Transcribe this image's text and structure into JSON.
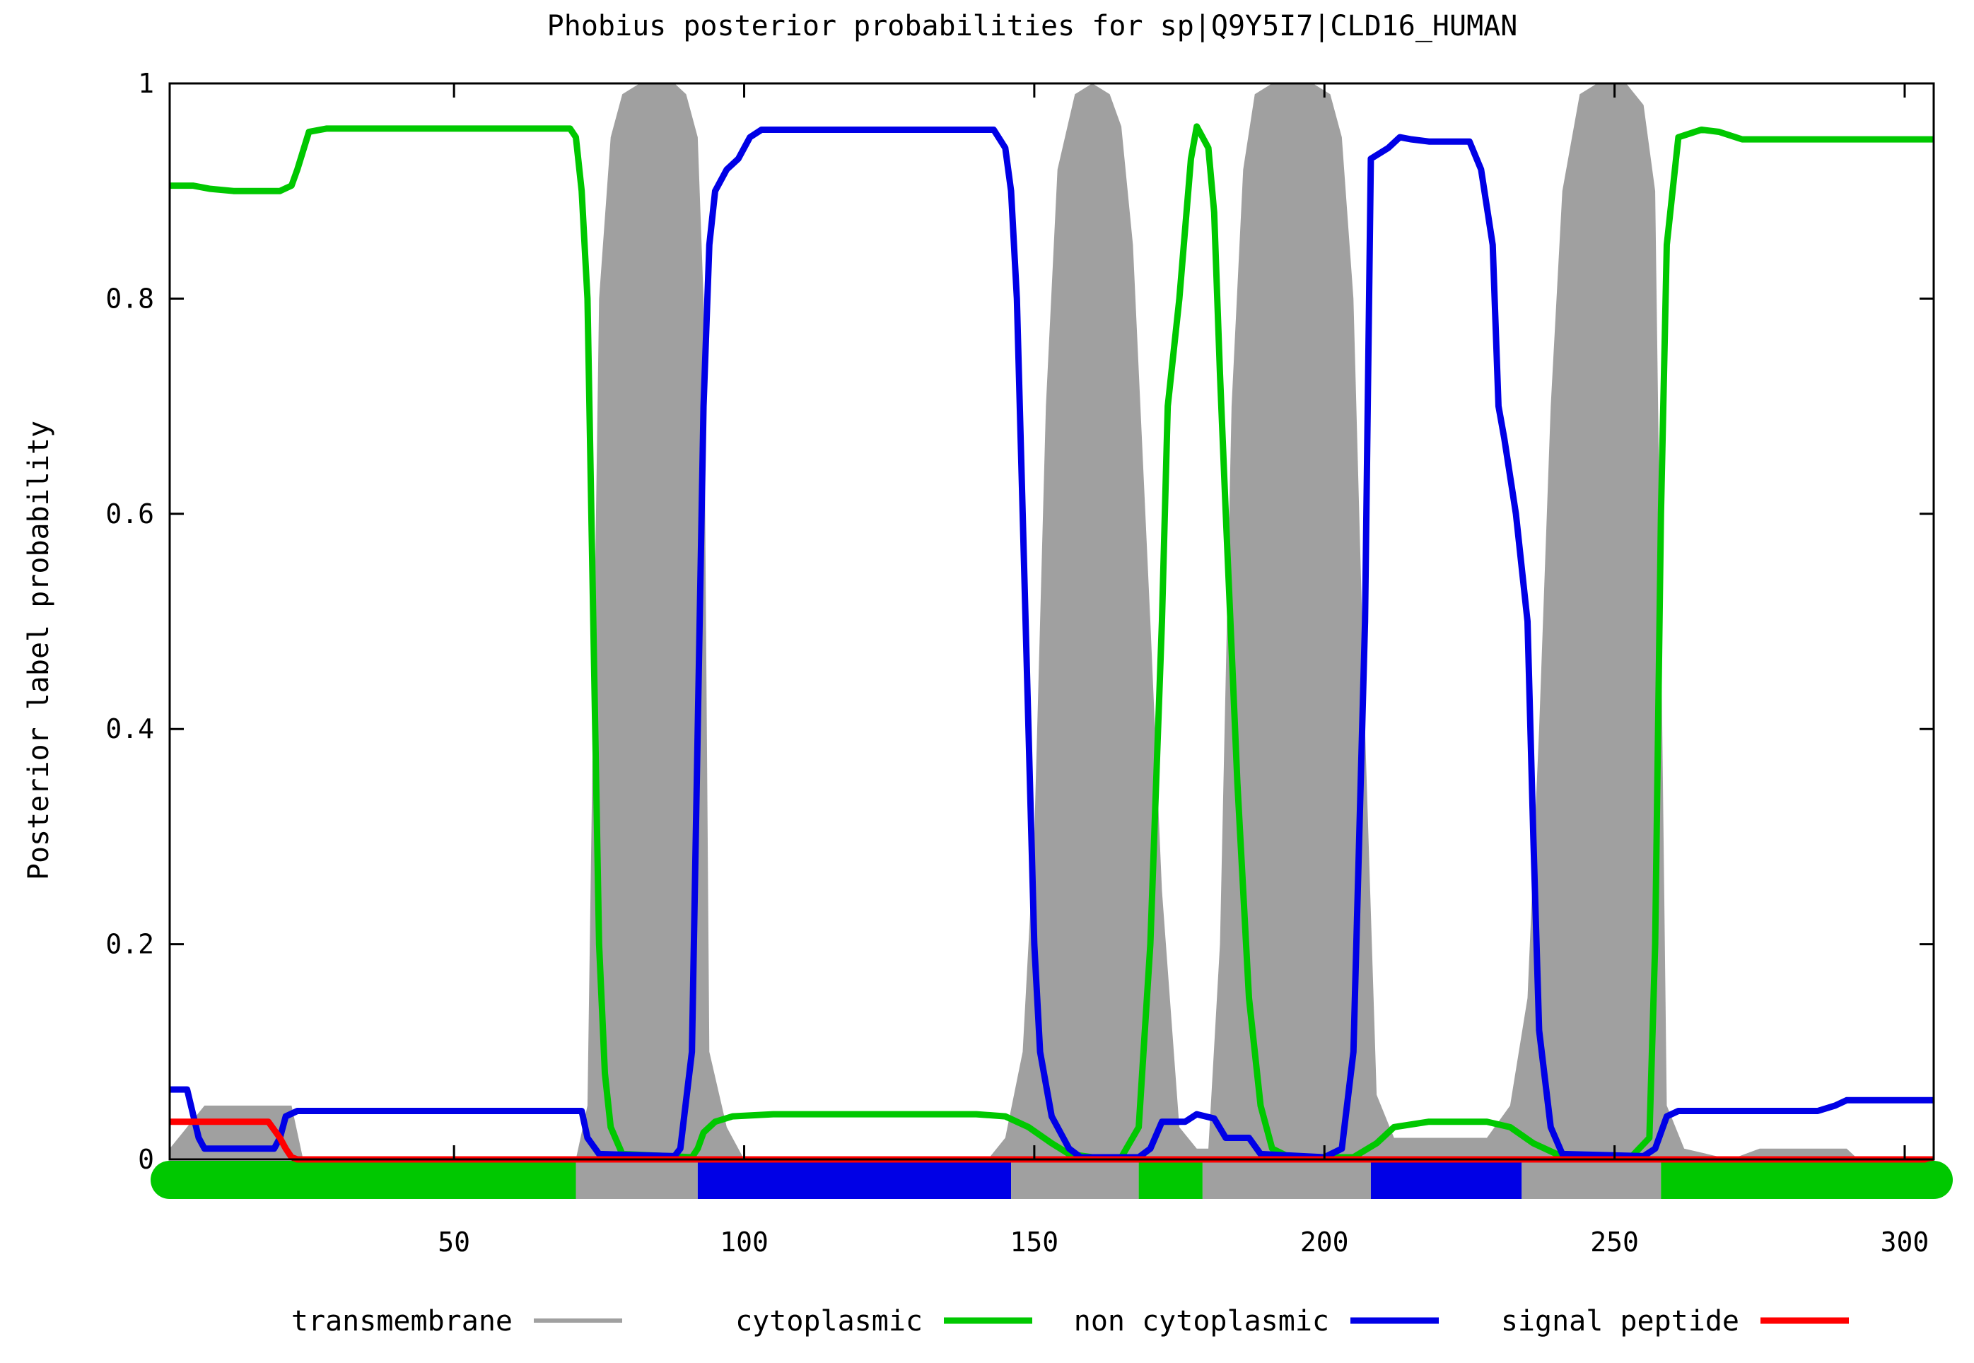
{
  "chart_data": {
    "type": "line",
    "title": "Phobius posterior probabilities for sp|Q9Y5I7|CLD16_HUMAN",
    "xlabel": "",
    "ylabel": "Posterior label probability",
    "xlim": [
      1,
      305
    ],
    "ylim": [
      0,
      1
    ],
    "x_ticks": [
      50,
      100,
      150,
      200,
      250,
      300
    ],
    "y_ticks": [
      0,
      0.2,
      0.4,
      0.6,
      0.8,
      1
    ],
    "y_tick_labels": [
      "0",
      "0.2",
      "0.4",
      "0.6",
      "0.8",
      "1"
    ],
    "legend_position": "bottom",
    "series": [
      {
        "name": "transmembrane",
        "style": "filled-area",
        "color": "#a0a0a0",
        "points": [
          [
            1,
            0.01
          ],
          [
            7,
            0.05
          ],
          [
            22,
            0.05
          ],
          [
            24,
            0
          ],
          [
            71,
            0
          ],
          [
            73,
            0.05
          ],
          [
            75,
            0.8
          ],
          [
            77,
            0.95
          ],
          [
            79,
            0.99
          ],
          [
            82,
            1
          ],
          [
            88,
            1
          ],
          [
            90,
            0.99
          ],
          [
            92,
            0.95
          ],
          [
            93,
            0.8
          ],
          [
            94,
            0.1
          ],
          [
            97,
            0.03
          ],
          [
            100,
            0
          ],
          [
            142,
            0
          ],
          [
            145,
            0.02
          ],
          [
            148,
            0.1
          ],
          [
            150,
            0.3
          ],
          [
            152,
            0.7
          ],
          [
            154,
            0.92
          ],
          [
            157,
            0.99
          ],
          [
            160,
            1
          ],
          [
            163,
            0.99
          ],
          [
            165,
            0.96
          ],
          [
            167,
            0.85
          ],
          [
            170,
            0.5
          ],
          [
            172,
            0.25
          ],
          [
            175,
            0.03
          ],
          [
            178,
            0.01
          ],
          [
            180,
            0.01
          ],
          [
            182,
            0.2
          ],
          [
            184,
            0.7
          ],
          [
            186,
            0.92
          ],
          [
            188,
            0.99
          ],
          [
            191,
            1
          ],
          [
            198,
            1
          ],
          [
            201,
            0.99
          ],
          [
            203,
            0.95
          ],
          [
            205,
            0.8
          ],
          [
            207,
            0.4
          ],
          [
            209,
            0.06
          ],
          [
            212,
            0.02
          ],
          [
            220,
            0.02
          ],
          [
            228,
            0.02
          ],
          [
            232,
            0.05
          ],
          [
            235,
            0.15
          ],
          [
            237,
            0.4
          ],
          [
            239,
            0.7
          ],
          [
            241,
            0.9
          ],
          [
            244,
            0.99
          ],
          [
            247,
            1
          ],
          [
            252,
            1
          ],
          [
            255,
            0.98
          ],
          [
            257,
            0.9
          ],
          [
            258,
            0.5
          ],
          [
            259,
            0.05
          ],
          [
            262,
            0.01
          ],
          [
            270,
            0
          ],
          [
            275,
            0.01
          ],
          [
            283,
            0.01
          ],
          [
            290,
            0.01
          ],
          [
            292,
            0
          ],
          [
            305,
            0
          ]
        ]
      },
      {
        "name": "cytoplasmic",
        "style": "line",
        "color": "#00c800",
        "points": [
          [
            1,
            0.905
          ],
          [
            5,
            0.905
          ],
          [
            8,
            0.902
          ],
          [
            12,
            0.9
          ],
          [
            20,
            0.9
          ],
          [
            22,
            0.905
          ],
          [
            23,
            0.92
          ],
          [
            25,
            0.955
          ],
          [
            28,
            0.958
          ],
          [
            70,
            0.958
          ],
          [
            71,
            0.95
          ],
          [
            72,
            0.9
          ],
          [
            73,
            0.8
          ],
          [
            74,
            0.5
          ],
          [
            75,
            0.2
          ],
          [
            76,
            0.08
          ],
          [
            77,
            0.03
          ],
          [
            79,
            0.005
          ],
          [
            91,
            0.002
          ],
          [
            92,
            0.01
          ],
          [
            93,
            0.025
          ],
          [
            95,
            0.035
          ],
          [
            98,
            0.04
          ],
          [
            105,
            0.042
          ],
          [
            140,
            0.042
          ],
          [
            145,
            0.04
          ],
          [
            149,
            0.03
          ],
          [
            153,
            0.015
          ],
          [
            156,
            0.005
          ],
          [
            160,
            0.002
          ],
          [
            165,
            0.002
          ],
          [
            168,
            0.03
          ],
          [
            170,
            0.2
          ],
          [
            172,
            0.5
          ],
          [
            173,
            0.7
          ],
          [
            175,
            0.8
          ],
          [
            177,
            0.93
          ],
          [
            178,
            0.96
          ],
          [
            180,
            0.94
          ],
          [
            181,
            0.88
          ],
          [
            182,
            0.73
          ],
          [
            183,
            0.6
          ],
          [
            185,
            0.35
          ],
          [
            187,
            0.15
          ],
          [
            189,
            0.05
          ],
          [
            191,
            0.01
          ],
          [
            194,
            0.002
          ],
          [
            205,
            0.002
          ],
          [
            209,
            0.015
          ],
          [
            212,
            0.03
          ],
          [
            218,
            0.035
          ],
          [
            228,
            0.035
          ],
          [
            232,
            0.03
          ],
          [
            236,
            0.015
          ],
          [
            240,
            0.005
          ],
          [
            253,
            0.003
          ],
          [
            256,
            0.02
          ],
          [
            257,
            0.2
          ],
          [
            258,
            0.6
          ],
          [
            259,
            0.85
          ],
          [
            261,
            0.95
          ],
          [
            265,
            0.957
          ],
          [
            268,
            0.955
          ],
          [
            272,
            0.948
          ],
          [
            305,
            0.948
          ]
        ]
      },
      {
        "name": "non cytoplasmic",
        "style": "line",
        "color": "#0000e6",
        "points": [
          [
            1,
            0.065
          ],
          [
            4,
            0.065
          ],
          [
            6,
            0.02
          ],
          [
            7,
            0.01
          ],
          [
            19,
            0.01
          ],
          [
            20,
            0.02
          ],
          [
            21,
            0.04
          ],
          [
            23,
            0.045
          ],
          [
            72,
            0.045
          ],
          [
            73,
            0.02
          ],
          [
            75,
            0.005
          ],
          [
            88,
            0.003
          ],
          [
            89,
            0.01
          ],
          [
            91,
            0.1
          ],
          [
            92,
            0.4
          ],
          [
            93,
            0.7
          ],
          [
            94,
            0.85
          ],
          [
            95,
            0.9
          ],
          [
            97,
            0.92
          ],
          [
            99,
            0.93
          ],
          [
            101,
            0.95
          ],
          [
            103,
            0.957
          ],
          [
            143,
            0.957
          ],
          [
            145,
            0.94
          ],
          [
            146,
            0.9
          ],
          [
            147,
            0.8
          ],
          [
            148,
            0.6
          ],
          [
            149,
            0.4
          ],
          [
            150,
            0.2
          ],
          [
            151,
            0.1
          ],
          [
            153,
            0.04
          ],
          [
            156,
            0.01
          ],
          [
            158,
            0.002
          ],
          [
            168,
            0.002
          ],
          [
            170,
            0.01
          ],
          [
            172,
            0.035
          ],
          [
            176,
            0.035
          ],
          [
            178,
            0.042
          ],
          [
            181,
            0.038
          ],
          [
            183,
            0.02
          ],
          [
            187,
            0.02
          ],
          [
            189,
            0.005
          ],
          [
            200,
            0.002
          ],
          [
            203,
            0.01
          ],
          [
            205,
            0.1
          ],
          [
            207,
            0.5
          ],
          [
            208,
            0.93
          ],
          [
            211,
            0.94
          ],
          [
            213,
            0.95
          ],
          [
            215,
            0.948
          ],
          [
            218,
            0.946
          ],
          [
            225,
            0.946
          ],
          [
            227,
            0.92
          ],
          [
            229,
            0.85
          ],
          [
            230,
            0.7
          ],
          [
            231,
            0.67
          ],
          [
            233,
            0.6
          ],
          [
            235,
            0.5
          ],
          [
            236,
            0.3
          ],
          [
            237,
            0.12
          ],
          [
            239,
            0.03
          ],
          [
            241,
            0.005
          ],
          [
            255,
            0.003
          ],
          [
            257,
            0.01
          ],
          [
            259,
            0.04
          ],
          [
            261,
            0.045
          ],
          [
            285,
            0.045
          ],
          [
            288,
            0.05
          ],
          [
            290,
            0.055
          ],
          [
            305,
            0.055
          ]
        ]
      },
      {
        "name": "signal peptide",
        "style": "line",
        "color": "#ff0000",
        "points": [
          [
            1,
            0.035
          ],
          [
            18,
            0.035
          ],
          [
            20,
            0.02
          ],
          [
            21,
            0.01
          ],
          [
            22,
            0.002
          ],
          [
            23,
            0
          ],
          [
            305,
            0
          ]
        ]
      }
    ],
    "topology_bar": [
      {
        "from": 1,
        "to": 71,
        "label": "cytoplasmic",
        "color": "#00c800"
      },
      {
        "from": 71,
        "to": 92,
        "label": "transmembrane",
        "color": "#a0a0a0"
      },
      {
        "from": 92,
        "to": 146,
        "label": "non cytoplasmic",
        "color": "#0000e6"
      },
      {
        "from": 146,
        "to": 168,
        "label": "transmembrane",
        "color": "#a0a0a0"
      },
      {
        "from": 168,
        "to": 179,
        "label": "cytoplasmic",
        "color": "#00c800"
      },
      {
        "from": 179,
        "to": 208,
        "label": "transmembrane",
        "color": "#a0a0a0"
      },
      {
        "from": 208,
        "to": 234,
        "label": "non cytoplasmic",
        "color": "#0000e6"
      },
      {
        "from": 234,
        "to": 258,
        "label": "transmembrane",
        "color": "#a0a0a0"
      },
      {
        "from": 258,
        "to": 305,
        "label": "cytoplasmic",
        "color": "#00c800"
      }
    ]
  }
}
